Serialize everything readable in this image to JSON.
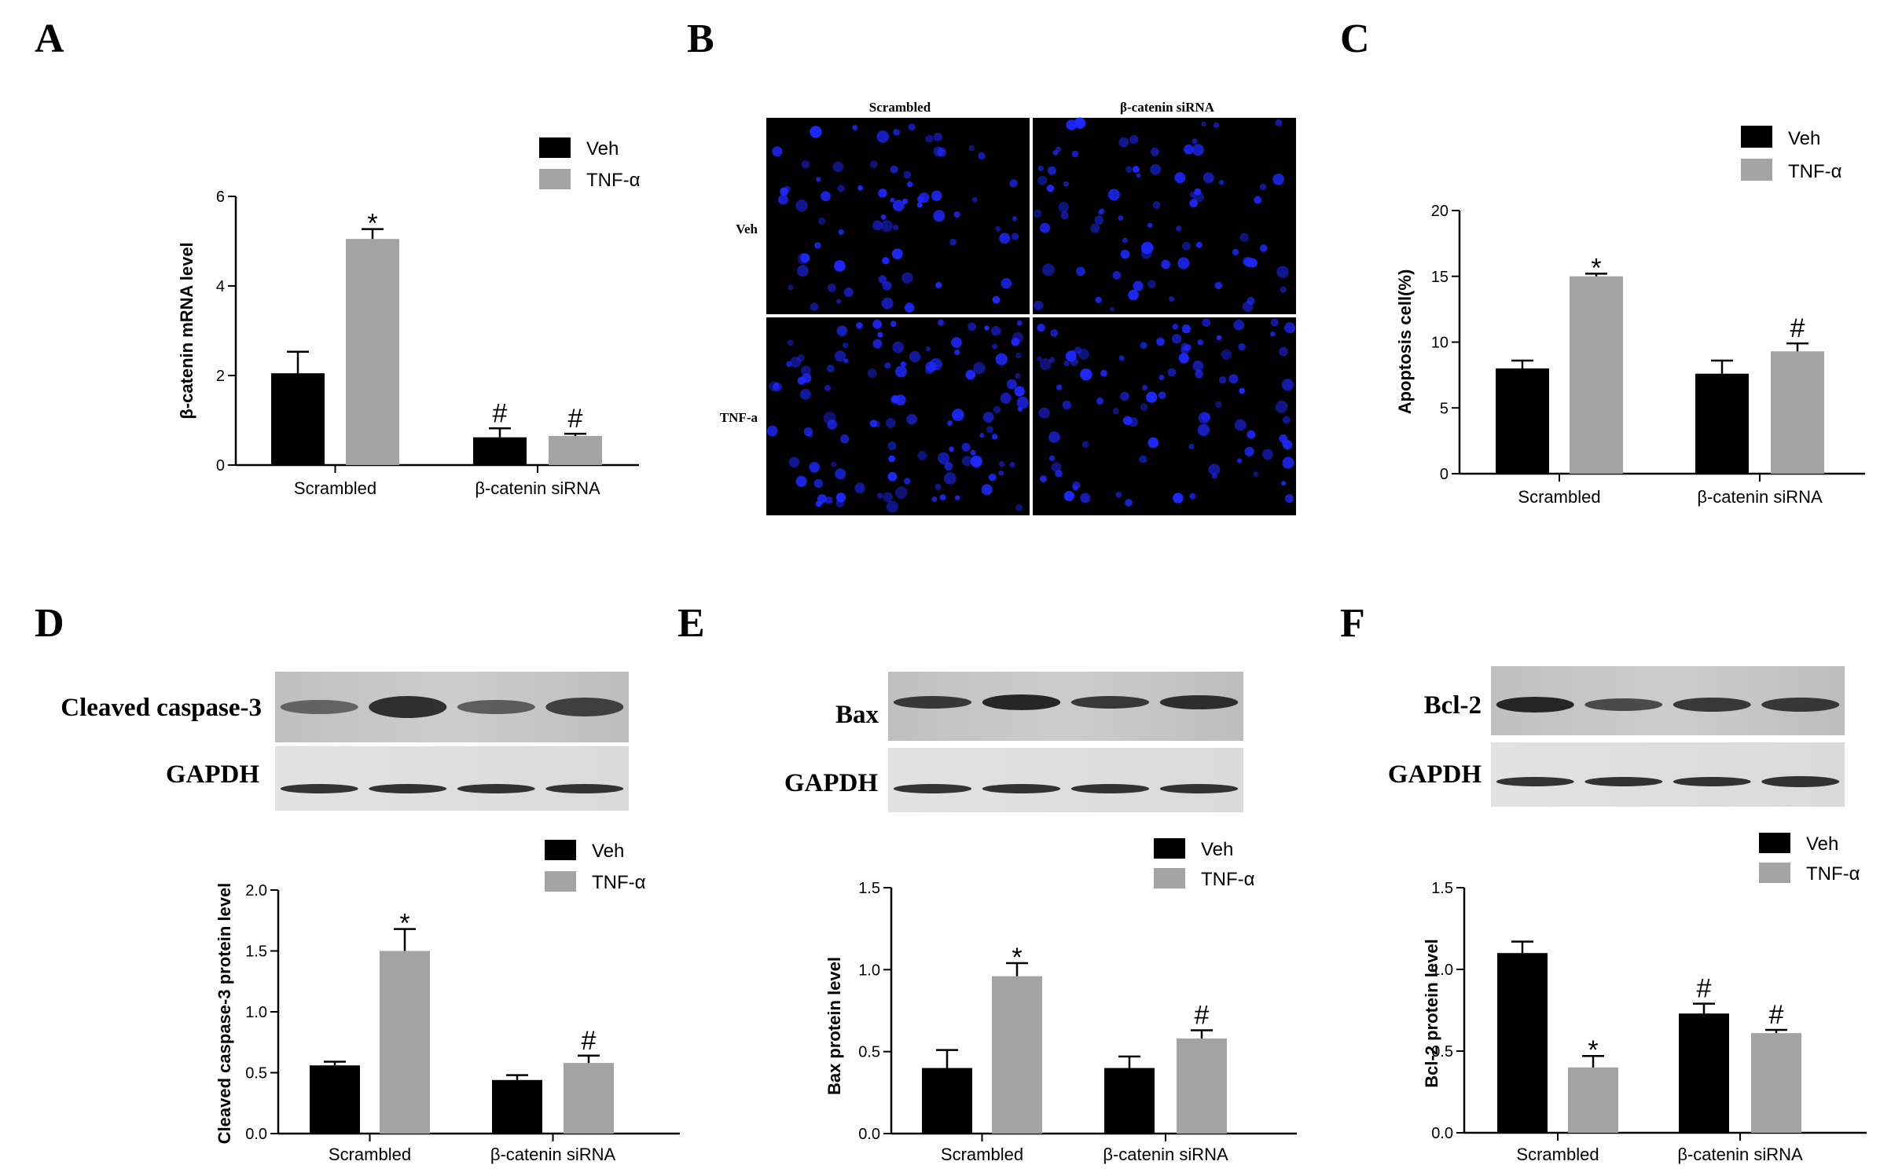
{
  "colors": {
    "veh": "#000000",
    "tnf": "#a3a3a3",
    "nuclei": "#1e28ff"
  },
  "panel_letters": [
    "A",
    "B",
    "C",
    "D",
    "E",
    "F"
  ],
  "image_panel": {
    "col_labels": [
      "Scrambled",
      "β-catenin siRNA"
    ],
    "row_labels": [
      "Veh",
      "TNF-a"
    ]
  },
  "blots": {
    "D": {
      "label": "Cleaved caspase-3",
      "control": "GAPDH"
    },
    "E": {
      "label": "Bax",
      "control": "GAPDH"
    },
    "F": {
      "label": "Bcl-2",
      "control": "GAPDH"
    }
  },
  "chart_data": [
    {
      "panel": "A",
      "type": "bar",
      "categories": [
        "Scrambled",
        "β-catenin siRNA"
      ],
      "ylabel": "β-catenin mRNA level",
      "ylim": [
        0,
        6
      ],
      "yticks": [
        "0",
        "2",
        "4",
        "6"
      ],
      "legend": "top-right",
      "series": [
        {
          "name": "Veh",
          "values": [
            2.05,
            0.62
          ],
          "errors": [
            0.48,
            0.2
          ],
          "marks": [
            "",
            "#"
          ]
        },
        {
          "name": "TNF-α",
          "values": [
            5.05,
            0.65
          ],
          "errors": [
            0.22,
            0.05
          ],
          "marks": [
            "*",
            "#"
          ]
        }
      ]
    },
    {
      "panel": "C",
      "type": "bar",
      "categories": [
        "Scrambled",
        "β-catenin siRNA"
      ],
      "ylabel": "Apoptosis cell(%)",
      "ylim": [
        0,
        20
      ],
      "yticks": [
        "0",
        "5",
        "10",
        "15",
        "20"
      ],
      "legend": "top-right",
      "series": [
        {
          "name": "Veh",
          "values": [
            8.0,
            7.6
          ],
          "errors": [
            0.6,
            1.0
          ],
          "marks": [
            "",
            ""
          ]
        },
        {
          "name": "TNF-α",
          "values": [
            15.0,
            9.3
          ],
          "errors": [
            0.2,
            0.6
          ],
          "marks": [
            "*",
            "#"
          ]
        }
      ]
    },
    {
      "panel": "D",
      "type": "bar",
      "categories": [
        "Scrambled",
        "β-catenin siRNA"
      ],
      "ylabel": "Cleaved caspase-3 protein level",
      "ylim": [
        0,
        2.0
      ],
      "yticks": [
        "0.0",
        "0.5",
        "1.0",
        "1.5",
        "2.0"
      ],
      "legend": "top-right",
      "series": [
        {
          "name": "Veh",
          "values": [
            0.56,
            0.44
          ],
          "errors": [
            0.03,
            0.04
          ],
          "marks": [
            "",
            ""
          ]
        },
        {
          "name": "TNF-α",
          "values": [
            1.5,
            0.58
          ],
          "errors": [
            0.18,
            0.06
          ],
          "marks": [
            "*",
            "#"
          ]
        }
      ]
    },
    {
      "panel": "E",
      "type": "bar",
      "categories": [
        "Scrambled",
        "β-catenin siRNA"
      ],
      "ylabel": "Bax protein level",
      "ylim": [
        0,
        1.5
      ],
      "yticks": [
        "0.0",
        "0.5",
        "1.0",
        "1.5"
      ],
      "legend": "top-right",
      "series": [
        {
          "name": "Veh",
          "values": [
            0.4,
            0.4
          ],
          "errors": [
            0.11,
            0.07
          ],
          "marks": [
            "",
            ""
          ]
        },
        {
          "name": "TNF-α",
          "values": [
            0.96,
            0.58
          ],
          "errors": [
            0.08,
            0.05
          ],
          "marks": [
            "*",
            "#"
          ]
        }
      ]
    },
    {
      "panel": "F",
      "type": "bar",
      "categories": [
        "Scrambled",
        "β-catenin siRNA"
      ],
      "ylabel": "Bcl-2 protein level",
      "ylim": [
        0,
        1.5
      ],
      "yticks": [
        "0.0",
        "0.5",
        "1.0",
        "1.5"
      ],
      "legend": "top-right",
      "series": [
        {
          "name": "Veh",
          "values": [
            1.1,
            0.73
          ],
          "errors": [
            0.07,
            0.06
          ],
          "marks": [
            "",
            "#"
          ]
        },
        {
          "name": "TNF-α",
          "values": [
            0.4,
            0.61
          ],
          "errors": [
            0.07,
            0.02
          ],
          "marks": [
            "*",
            "#"
          ]
        }
      ]
    }
  ]
}
